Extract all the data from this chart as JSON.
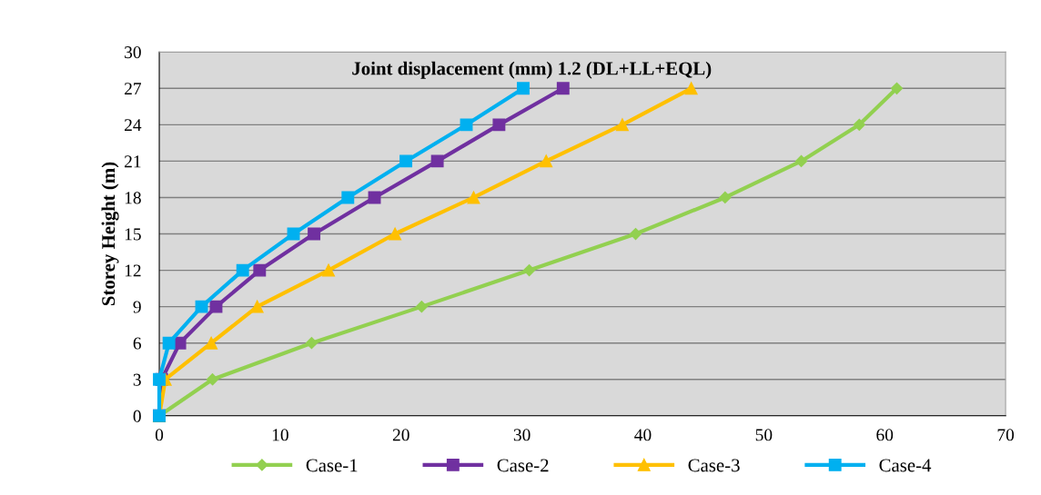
{
  "chart_data": {
    "type": "line",
    "title": "Joint displacement (mm) 1.2 (DL+LL+EQL)",
    "ylabel": "Storey Height (m)",
    "xlim": [
      0,
      70
    ],
    "xticks": [
      0,
      10,
      20,
      30,
      40,
      50,
      60,
      70
    ],
    "ylim": [
      0,
      30
    ],
    "yticks": [
      0,
      3,
      6,
      9,
      12,
      15,
      18,
      21,
      24,
      27,
      30
    ],
    "grid": "y",
    "legend": "bottom",
    "series": [
      {
        "name": "Case-1",
        "color": "#92d050",
        "marker": "diamond",
        "x": [
          0,
          4.4,
          12.6,
          21.7,
          30.6,
          39.4,
          46.8,
          53.1,
          57.9,
          61.0
        ],
        "values": [
          0,
          3,
          6,
          9,
          12,
          15,
          18,
          21,
          24,
          27
        ]
      },
      {
        "name": "Case-2",
        "color": "#7030a0",
        "marker": "square",
        "x": [
          0,
          0.2,
          1.7,
          4.7,
          8.3,
          12.8,
          17.8,
          23.0,
          28.1,
          33.4
        ],
        "values": [
          0,
          3,
          6,
          9,
          12,
          15,
          18,
          21,
          24,
          27
        ]
      },
      {
        "name": "Case-3",
        "color": "#ffc000",
        "marker": "triangle",
        "x": [
          0,
          0.5,
          4.3,
          8.1,
          14.0,
          19.5,
          26.0,
          32.0,
          38.3,
          44.0
        ],
        "values": [
          0,
          3,
          6,
          9,
          12,
          15,
          18,
          21,
          24,
          27
        ]
      },
      {
        "name": "Case-4",
        "color": "#00b0f0",
        "marker": "square",
        "x": [
          0,
          0,
          0.8,
          3.5,
          6.9,
          11.1,
          15.6,
          20.4,
          25.4,
          30.1
        ],
        "values": [
          0,
          3,
          6,
          9,
          12,
          15,
          18,
          21,
          24,
          27
        ]
      }
    ]
  }
}
